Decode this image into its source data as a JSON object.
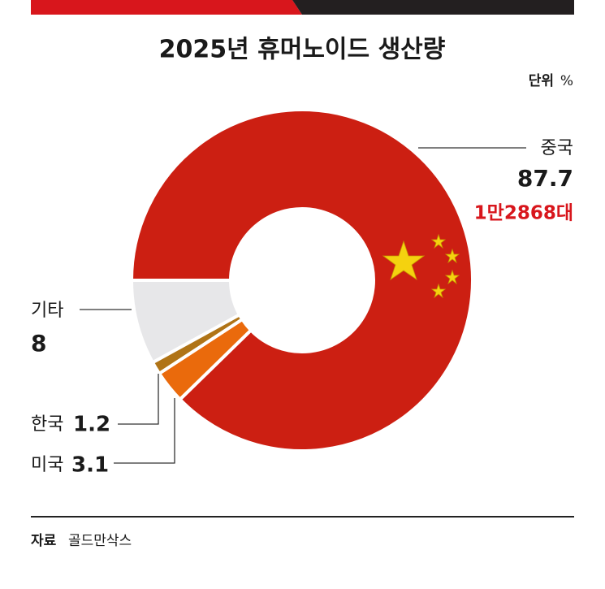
{
  "chart_data": {
    "type": "pie",
    "donut": true,
    "title": "2025년 휴머노이드 생산량",
    "unit_label": "단위",
    "unit": "%",
    "categories": [
      "중국",
      "미국",
      "한국",
      "기타"
    ],
    "values": [
      87.7,
      3.1,
      1.2,
      8.0
    ],
    "colors": [
      "#cc1f12",
      "#ea6a0c",
      "#b07417",
      "#e7e7e9"
    ],
    "annotation": "1만2868대",
    "source_label": "자료",
    "source": "골드만삭스"
  }
}
